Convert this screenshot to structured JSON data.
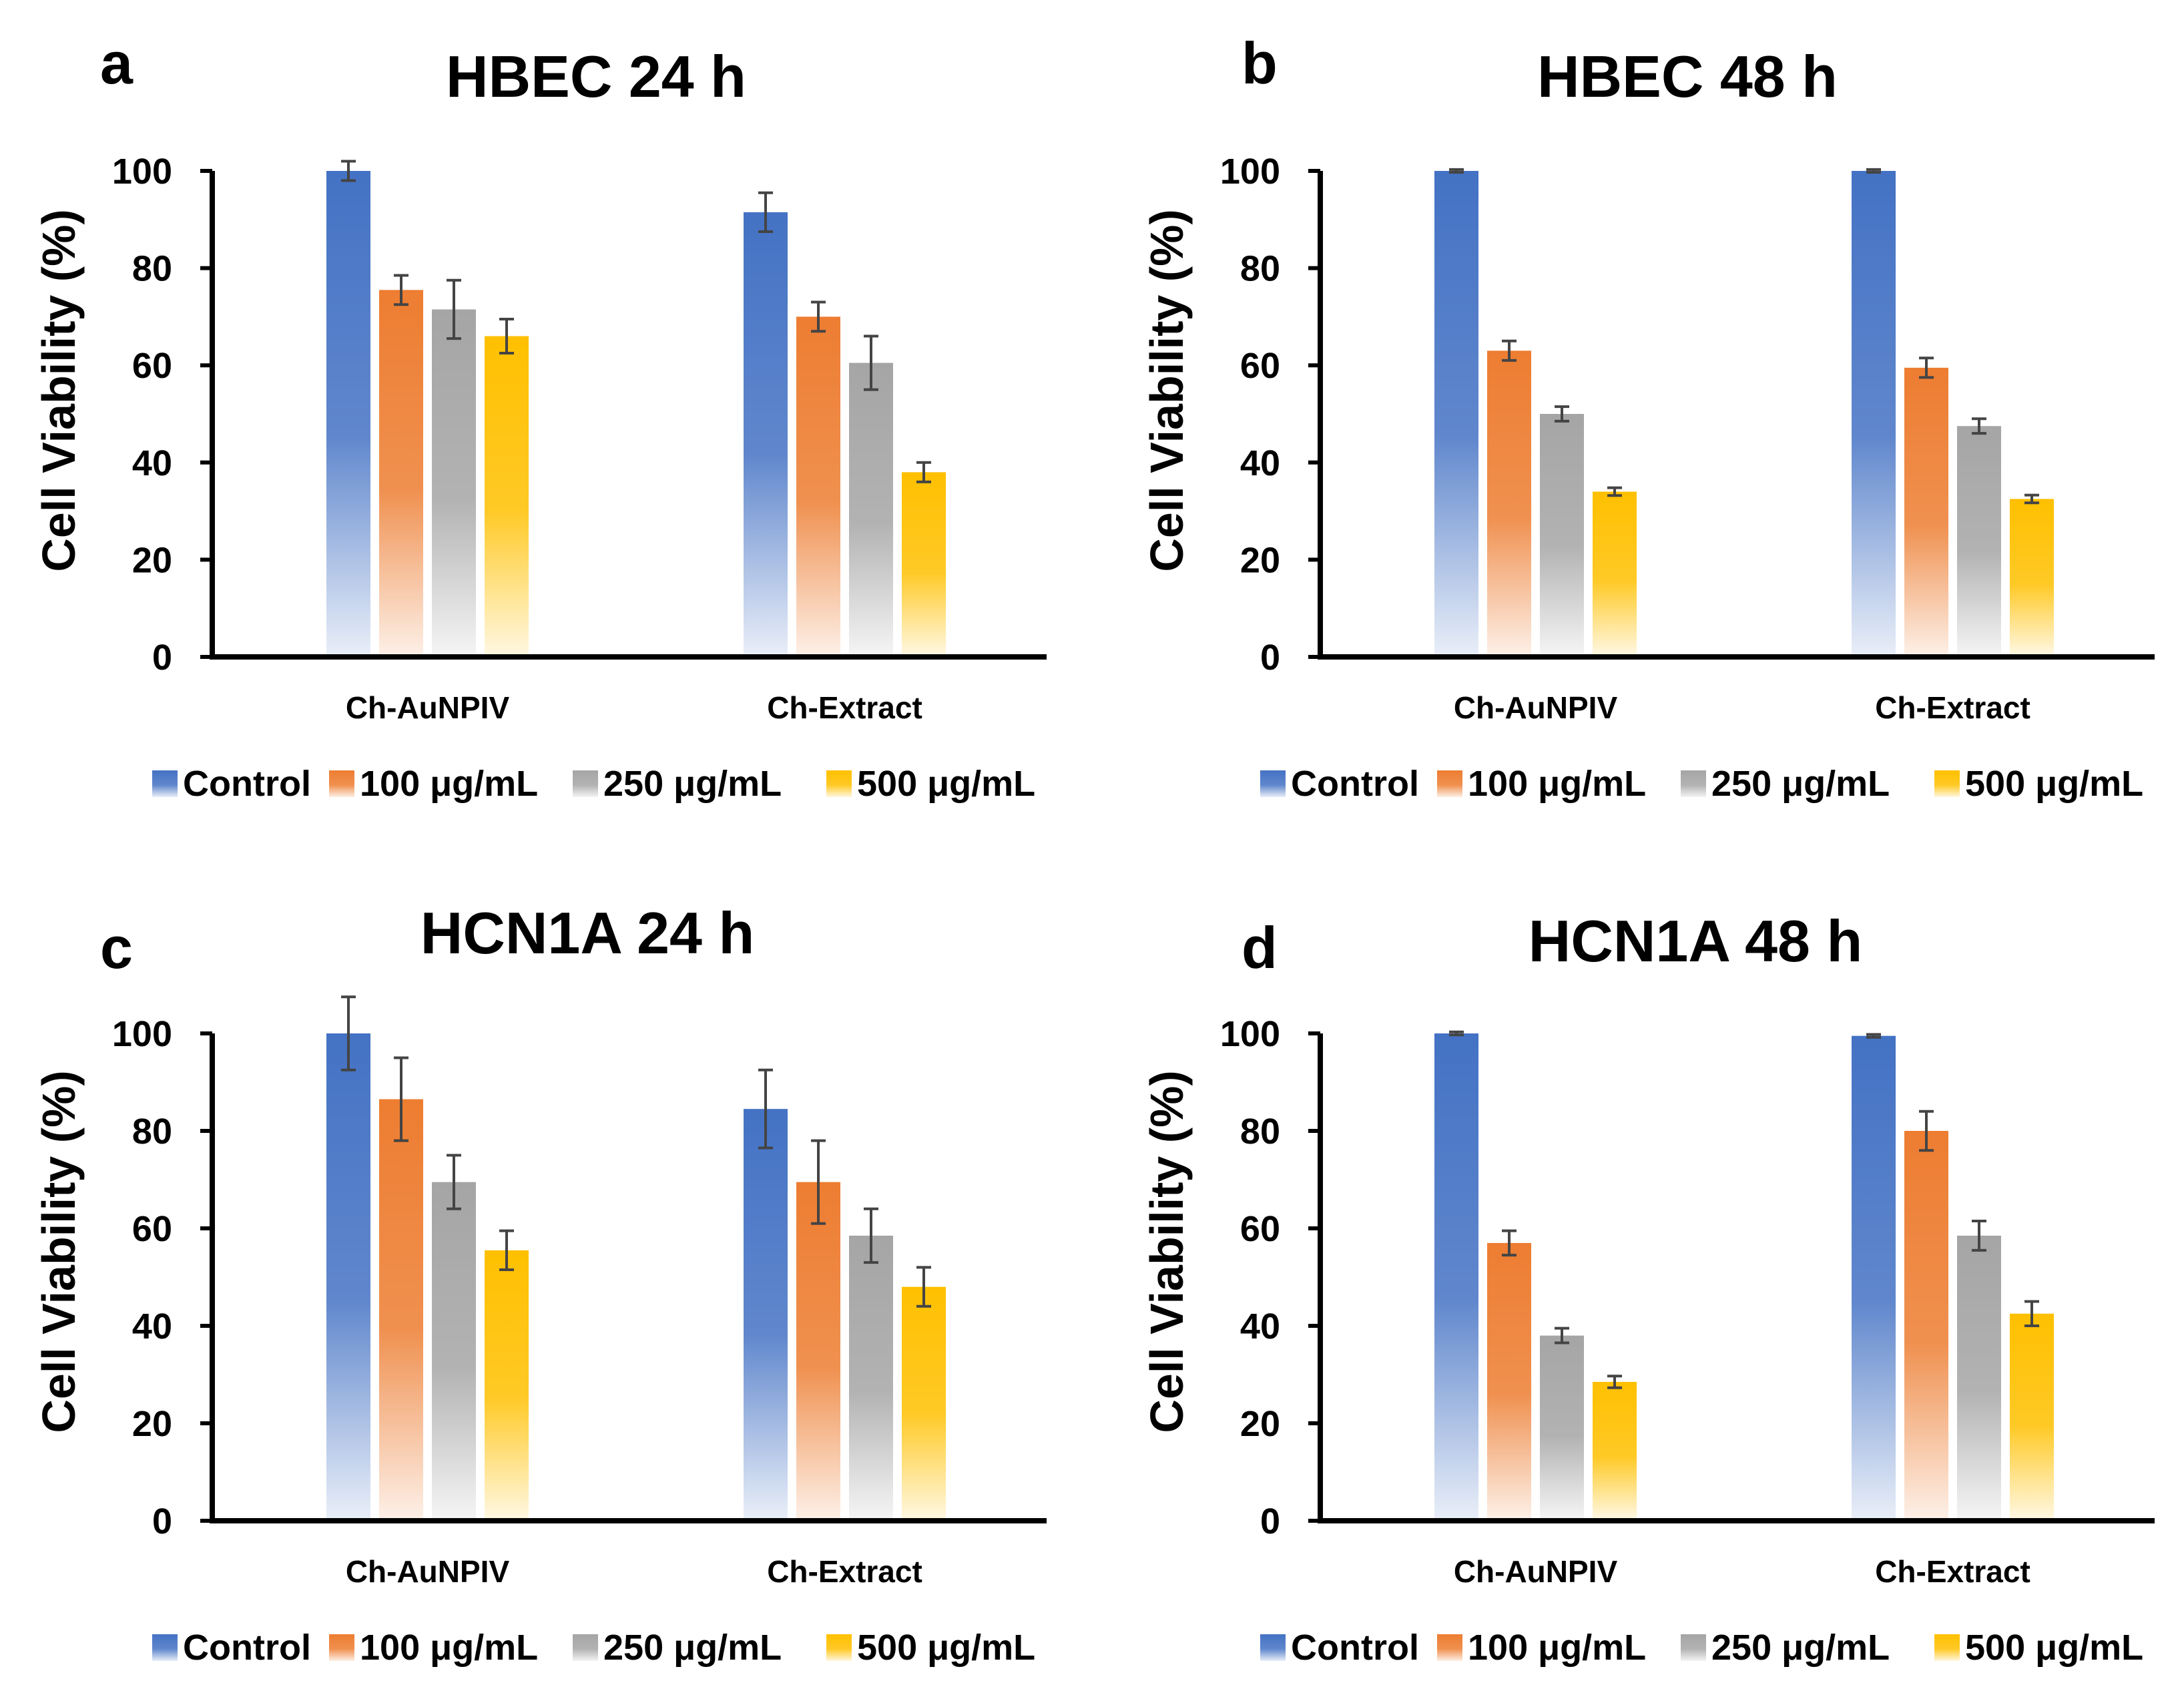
{
  "figure": {
    "series_colors": [
      "#4472C4",
      "#ED7D31",
      "#A5A5A5",
      "#FFC000"
    ]
  },
  "chart_data": [
    {
      "panel": "a",
      "type": "bar",
      "title": "HBEC 24 h",
      "xlabel": "",
      "ylabel": "Cell Viability (%)",
      "ylim": [
        0,
        100
      ],
      "yticks": [
        "0",
        "20",
        "40",
        "60",
        "80",
        "100"
      ],
      "categories": [
        "Ch-AuNPIV",
        "Ch-Extract"
      ],
      "series": [
        {
          "name": "Control",
          "values": [
            100,
            91.5
          ],
          "errors": [
            2,
            4
          ]
        },
        {
          "name": "100 μg/mL",
          "values": [
            75.5,
            70
          ],
          "errors": [
            3,
            3
          ]
        },
        {
          "name": "250 μg/mL",
          "values": [
            71.5,
            60.5
          ],
          "errors": [
            6,
            5.5
          ]
        },
        {
          "name": "500 μg/mL",
          "values": [
            66,
            38
          ],
          "errors": [
            3.5,
            2
          ]
        }
      ],
      "legend": "bottom"
    },
    {
      "panel": "b",
      "type": "bar",
      "title": "HBEC 48 h",
      "xlabel": "",
      "ylabel": "Cell Viability (%)",
      "ylim": [
        0,
        100
      ],
      "yticks": [
        "0",
        "20",
        "40",
        "60",
        "80",
        "100"
      ],
      "categories": [
        "Ch-AuNPIV",
        "Ch-Extract"
      ],
      "series": [
        {
          "name": "Control",
          "values": [
            100,
            100
          ],
          "errors": [
            0.3,
            0.3
          ]
        },
        {
          "name": "100 μg/mL",
          "values": [
            63,
            59.5
          ],
          "errors": [
            2,
            2
          ]
        },
        {
          "name": "250 μg/mL",
          "values": [
            50,
            47.5
          ],
          "errors": [
            1.5,
            1.5
          ]
        },
        {
          "name": "500 μg/mL",
          "values": [
            34,
            32.5
          ],
          "errors": [
            0.8,
            0.8
          ]
        }
      ],
      "legend": "bottom"
    },
    {
      "panel": "c",
      "type": "bar",
      "title": "HCN1A 24 h",
      "xlabel": "",
      "ylabel": "Cell Viability (%)",
      "ylim": [
        0,
        100
      ],
      "yticks": [
        "0",
        "20",
        "40",
        "60",
        "80",
        "100"
      ],
      "categories": [
        "Ch-AuNPIV",
        "Ch-Extract"
      ],
      "series": [
        {
          "name": "Control",
          "values": [
            100,
            84.5
          ],
          "errors": [
            7.5,
            8
          ]
        },
        {
          "name": "100 μg/mL",
          "values": [
            86.5,
            69.5
          ],
          "errors": [
            8.5,
            8.5
          ]
        },
        {
          "name": "250 μg/mL",
          "values": [
            69.5,
            58.5
          ],
          "errors": [
            5.5,
            5.5
          ]
        },
        {
          "name": "500 μg/mL",
          "values": [
            55.5,
            48
          ],
          "errors": [
            4,
            4
          ]
        }
      ],
      "legend": "bottom"
    },
    {
      "panel": "d",
      "type": "bar",
      "title": "HCN1A 48 h",
      "xlabel": "",
      "ylabel": "Cell Viability (%)",
      "ylim": [
        0,
        100
      ],
      "yticks": [
        "0",
        "20",
        "40",
        "60",
        "80",
        "100"
      ],
      "categories": [
        "Ch-AuNPIV",
        "Ch-Extract"
      ],
      "series": [
        {
          "name": "Control",
          "values": [
            100,
            99.5
          ],
          "errors": [
            0.3,
            0.3
          ]
        },
        {
          "name": "100 μg/mL",
          "values": [
            57,
            80
          ],
          "errors": [
            2.5,
            4
          ]
        },
        {
          "name": "250 μg/mL",
          "values": [
            38,
            58.5
          ],
          "errors": [
            1.5,
            3
          ]
        },
        {
          "name": "500 μg/mL",
          "values": [
            28.5,
            42.5
          ],
          "errors": [
            1.2,
            2.5
          ]
        }
      ],
      "legend": "bottom"
    }
  ]
}
